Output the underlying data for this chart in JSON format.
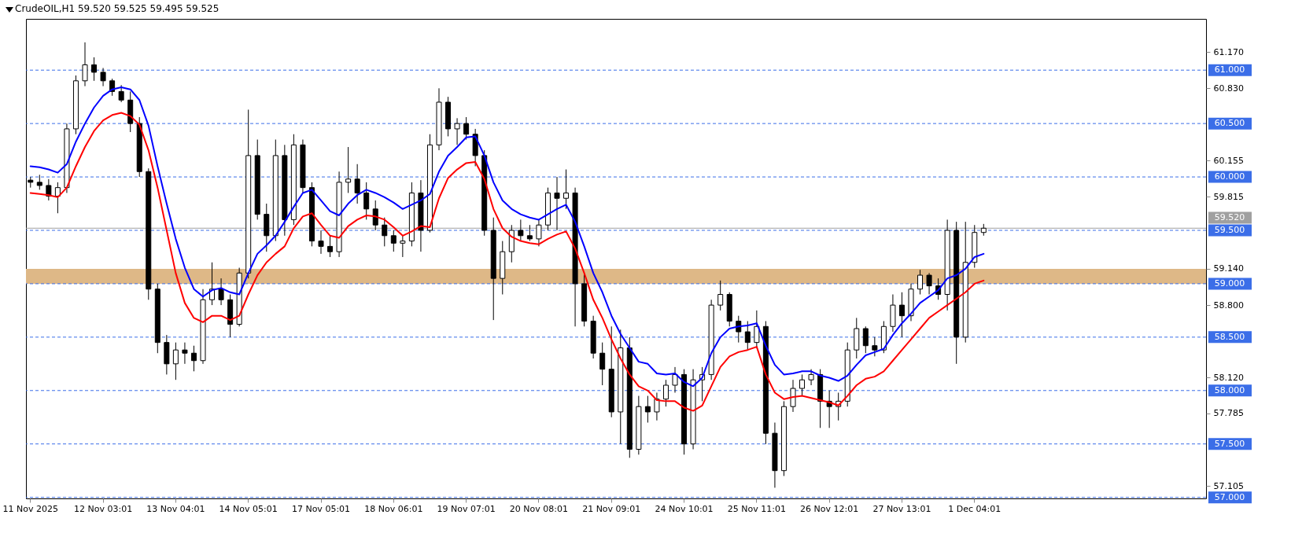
{
  "chart_data": {
    "type": "candlestick",
    "title": "CrudeOIL,H1  59.520 59.525 59.495 59.525",
    "categories": [
      "11 Nov 2025",
      null,
      null,
      null,
      null,
      null,
      null,
      null,
      "12 Nov 03:01",
      null,
      null,
      null,
      null,
      null,
      null,
      null,
      "13 Nov 04:01",
      null,
      null,
      null,
      null,
      null,
      null,
      null,
      "14 Nov 05:01",
      null,
      null,
      null,
      null,
      null,
      null,
      null,
      "17 Nov 05:01",
      null,
      null,
      null,
      null,
      null,
      null,
      null,
      "18 Nov 06:01",
      null,
      null,
      null,
      null,
      null,
      null,
      null,
      "19 Nov 07:01",
      null,
      null,
      null,
      null,
      null,
      null,
      null,
      "20 Nov 08:01",
      null,
      null,
      null,
      null,
      null,
      null,
      null,
      "21 Nov 09:01",
      null,
      null,
      null,
      null,
      null,
      null,
      null,
      "24 Nov 10:01",
      null,
      null,
      null,
      null,
      null,
      null,
      null,
      "25 Nov 11:01",
      null,
      null,
      null,
      null,
      null,
      null,
      null,
      "26 Nov 12:01",
      null,
      null,
      null,
      null,
      null,
      null,
      null,
      "27 Nov 13:01",
      null,
      null,
      null,
      null,
      null,
      null,
      null,
      "1 Dec 04:01",
      null,
      null,
      null,
      null,
      null,
      null,
      null,
      null,
      null,
      null,
      null,
      null,
      null,
      null,
      null,
      null,
      null,
      null,
      null,
      null,
      null,
      null,
      null,
      null,
      null
    ],
    "ohlc": [
      [
        59.97,
        60.0,
        59.9,
        59.95
      ],
      [
        59.95,
        60.02,
        59.88,
        59.92
      ],
      [
        59.92,
        59.98,
        59.78,
        59.82
      ],
      [
        59.82,
        59.95,
        59.66,
        59.9
      ],
      [
        59.9,
        60.5,
        59.85,
        60.45
      ],
      [
        60.45,
        60.95,
        60.4,
        60.9
      ],
      [
        60.9,
        61.26,
        60.85,
        61.05
      ],
      [
        61.05,
        61.12,
        60.9,
        60.98
      ],
      [
        60.98,
        61.02,
        60.85,
        60.9
      ],
      [
        60.9,
        60.92,
        60.76,
        60.8
      ],
      [
        60.8,
        60.86,
        60.7,
        60.72
      ],
      [
        60.72,
        60.8,
        60.42,
        60.5
      ],
      [
        60.5,
        60.56,
        60.0,
        60.05
      ],
      [
        60.05,
        60.08,
        58.85,
        58.95
      ],
      [
        58.95,
        59.0,
        58.35,
        58.45
      ],
      [
        58.45,
        58.52,
        58.15,
        58.25
      ],
      [
        58.25,
        58.45,
        58.1,
        58.38
      ],
      [
        58.38,
        58.45,
        58.25,
        58.35
      ],
      [
        58.35,
        58.42,
        58.18,
        58.28
      ],
      [
        58.28,
        58.95,
        58.25,
        58.85
      ],
      [
        58.85,
        59.2,
        58.8,
        58.95
      ],
      [
        58.95,
        59.05,
        58.8,
        58.85
      ],
      [
        58.85,
        58.9,
        58.5,
        58.62
      ],
      [
        58.62,
        59.15,
        58.6,
        59.1
      ],
      [
        59.1,
        60.63,
        59.05,
        60.2
      ],
      [
        60.2,
        60.35,
        59.6,
        59.65
      ],
      [
        59.65,
        59.75,
        59.3,
        59.45
      ],
      [
        59.45,
        60.35,
        59.4,
        60.2
      ],
      [
        60.2,
        60.3,
        59.45,
        59.6
      ],
      [
        59.6,
        60.4,
        59.55,
        60.3
      ],
      [
        60.3,
        60.35,
        59.85,
        59.9
      ],
      [
        59.9,
        59.95,
        59.35,
        59.4
      ],
      [
        59.4,
        59.5,
        59.28,
        59.35
      ],
      [
        59.35,
        59.45,
        59.25,
        59.3
      ],
      [
        59.3,
        60.05,
        59.25,
        59.95
      ],
      [
        59.95,
        60.28,
        59.85,
        59.98
      ],
      [
        59.98,
        60.12,
        59.75,
        59.85
      ],
      [
        59.85,
        59.95,
        59.6,
        59.7
      ],
      [
        59.7,
        59.78,
        59.5,
        59.55
      ],
      [
        59.55,
        59.62,
        59.35,
        59.45
      ],
      [
        59.45,
        59.5,
        59.3,
        59.38
      ],
      [
        59.38,
        59.45,
        59.25,
        59.4
      ],
      [
        59.4,
        59.95,
        59.35,
        59.85
      ],
      [
        59.85,
        59.97,
        59.3,
        59.5
      ],
      [
        59.5,
        60.4,
        59.48,
        60.3
      ],
      [
        60.3,
        60.83,
        60.25,
        60.7
      ],
      [
        60.7,
        60.75,
        60.38,
        60.45
      ],
      [
        60.45,
        60.55,
        60.3,
        60.5
      ],
      [
        60.5,
        60.56,
        60.35,
        60.4
      ],
      [
        60.4,
        60.45,
        60.1,
        60.2
      ],
      [
        60.2,
        60.25,
        59.45,
        59.5
      ],
      [
        59.5,
        59.62,
        58.66,
        59.05
      ],
      [
        59.05,
        59.4,
        58.9,
        59.3
      ],
      [
        59.3,
        59.55,
        59.2,
        59.5
      ],
      [
        59.5,
        59.6,
        59.4,
        59.45
      ],
      [
        59.45,
        59.55,
        59.4,
        59.42
      ],
      [
        59.42,
        59.6,
        59.35,
        59.55
      ],
      [
        59.55,
        59.9,
        59.5,
        59.85
      ],
      [
        59.85,
        60.0,
        59.5,
        59.8
      ],
      [
        59.8,
        60.07,
        59.7,
        59.85
      ],
      [
        59.85,
        59.9,
        58.6,
        59.0
      ],
      [
        59.0,
        59.1,
        58.6,
        58.65
      ],
      [
        58.65,
        58.7,
        58.3,
        58.35
      ],
      [
        58.35,
        58.45,
        58.05,
        58.2
      ],
      [
        58.2,
        58.6,
        57.75,
        57.8
      ],
      [
        57.8,
        58.57,
        57.5,
        58.4
      ],
      [
        58.4,
        58.5,
        57.37,
        57.45
      ],
      [
        57.45,
        57.95,
        57.4,
        57.85
      ],
      [
        57.85,
        57.95,
        57.7,
        57.8
      ],
      [
        57.8,
        57.98,
        57.72,
        57.92
      ],
      [
        57.92,
        58.1,
        57.85,
        58.05
      ],
      [
        58.05,
        58.22,
        57.98,
        58.15
      ],
      [
        58.15,
        58.2,
        57.4,
        57.5
      ],
      [
        57.5,
        58.2,
        57.45,
        58.1
      ],
      [
        58.1,
        58.22,
        57.9,
        58.15
      ],
      [
        58.15,
        58.85,
        58.1,
        58.8
      ],
      [
        58.8,
        59.03,
        58.75,
        58.9
      ],
      [
        58.9,
        58.92,
        58.6,
        58.65
      ],
      [
        58.65,
        58.7,
        58.45,
        58.55
      ],
      [
        58.55,
        58.65,
        58.38,
        58.45
      ],
      [
        58.45,
        58.75,
        58.4,
        58.6
      ],
      [
        58.6,
        58.65,
        57.5,
        57.6
      ],
      [
        57.6,
        57.7,
        57.09,
        57.25
      ],
      [
        57.25,
        57.9,
        57.2,
        57.85
      ],
      [
        57.85,
        58.1,
        57.8,
        58.02
      ],
      [
        58.02,
        58.15,
        57.95,
        58.1
      ],
      [
        58.1,
        58.2,
        58.05,
        58.15
      ],
      [
        58.15,
        58.2,
        57.65,
        57.9
      ],
      [
        57.9,
        58.0,
        57.65,
        57.85
      ],
      [
        57.85,
        57.98,
        57.72,
        57.9
      ],
      [
        57.9,
        58.45,
        57.85,
        58.38
      ],
      [
        58.38,
        58.68,
        58.3,
        58.58
      ],
      [
        58.58,
        58.6,
        58.35,
        58.42
      ],
      [
        58.42,
        58.5,
        58.32,
        58.38
      ],
      [
        58.38,
        58.65,
        58.35,
        58.6
      ],
      [
        58.6,
        58.9,
        58.55,
        58.8
      ],
      [
        58.8,
        58.92,
        58.5,
        58.7
      ],
      [
        58.7,
        59.0,
        58.65,
        58.95
      ],
      [
        58.95,
        59.13,
        58.9,
        59.08
      ],
      [
        59.08,
        59.1,
        58.9,
        58.98
      ],
      [
        58.98,
        59.05,
        58.85,
        58.9
      ],
      [
        58.9,
        59.6,
        58.75,
        59.5
      ],
      [
        59.5,
        59.58,
        58.25,
        58.5
      ],
      [
        58.5,
        59.58,
        58.45,
        59.2
      ],
      [
        59.2,
        59.55,
        59.15,
        59.48
      ],
      [
        59.48,
        59.56,
        59.45,
        59.52
      ],
      null,
      null,
      null,
      null,
      null,
      null,
      null,
      null,
      null,
      null,
      null,
      null,
      null,
      null,
      null,
      null,
      null,
      null,
      null,
      null,
      null,
      null,
      null,
      null
    ],
    "series": [
      {
        "type": "line",
        "color": "#0000ff",
        "values": [
          60.1,
          60.09,
          60.07,
          60.04,
          60.12,
          60.33,
          60.5,
          60.65,
          60.76,
          60.82,
          60.84,
          60.82,
          60.72,
          60.48,
          60.1,
          59.75,
          59.42,
          59.15,
          58.95,
          58.88,
          58.94,
          58.96,
          58.92,
          58.9,
          59.1,
          59.28,
          59.36,
          59.45,
          59.58,
          59.72,
          59.85,
          59.88,
          59.78,
          59.68,
          59.64,
          59.75,
          59.83,
          59.88,
          59.85,
          59.81,
          59.76,
          59.7,
          59.74,
          59.78,
          59.84,
          60.05,
          60.2,
          60.28,
          60.37,
          60.38,
          60.2,
          59.95,
          59.78,
          59.7,
          59.65,
          59.62,
          59.6,
          59.65,
          59.7,
          59.74,
          59.58,
          59.35,
          59.1,
          58.92,
          58.7,
          58.53,
          58.4,
          58.27,
          58.25,
          58.16,
          58.15,
          58.16,
          58.08,
          58.04,
          58.12,
          58.35,
          58.5,
          58.58,
          58.6,
          58.61,
          58.63,
          58.42,
          58.24,
          58.15,
          58.16,
          58.18,
          58.18,
          58.14,
          58.12,
          58.09,
          58.14,
          58.24,
          58.33,
          58.36,
          58.39,
          58.52,
          58.63,
          58.72,
          58.82,
          58.88,
          58.94,
          59.05,
          59.08,
          59.14,
          59.25,
          59.28,
          null,
          null,
          null,
          null,
          null,
          null,
          null,
          null,
          null,
          null,
          null,
          null,
          null,
          null,
          null,
          null,
          null,
          null,
          null,
          null,
          null,
          null,
          null,
          null
        ]
      },
      {
        "type": "line",
        "color": "#ff0000",
        "values": [
          59.85,
          59.84,
          59.83,
          59.81,
          59.9,
          60.1,
          60.28,
          60.43,
          60.53,
          60.58,
          60.6,
          60.57,
          60.49,
          60.25,
          59.9,
          59.5,
          59.1,
          58.82,
          58.68,
          58.64,
          58.7,
          58.7,
          58.66,
          58.7,
          58.9,
          59.08,
          59.2,
          59.28,
          59.35,
          59.52,
          59.63,
          59.66,
          59.55,
          59.45,
          59.43,
          59.54,
          59.6,
          59.64,
          59.63,
          59.6,
          59.53,
          59.45,
          59.49,
          59.54,
          59.53,
          59.8,
          59.99,
          60.07,
          60.13,
          60.14,
          59.98,
          59.7,
          59.52,
          59.44,
          59.4,
          59.38,
          59.37,
          59.42,
          59.46,
          59.49,
          59.33,
          59.1,
          58.85,
          58.68,
          58.48,
          58.3,
          58.15,
          58.04,
          58.0,
          57.91,
          57.9,
          57.9,
          57.84,
          57.81,
          57.86,
          58.04,
          58.22,
          58.32,
          58.36,
          58.38,
          58.41,
          58.15,
          57.98,
          57.92,
          57.94,
          57.95,
          57.93,
          57.91,
          57.89,
          57.86,
          57.95,
          58.05,
          58.11,
          58.13,
          58.18,
          58.28,
          58.38,
          58.48,
          58.58,
          58.68,
          58.74,
          58.8,
          58.86,
          58.92,
          59.0,
          59.03,
          null,
          null,
          null,
          null,
          null,
          null,
          null,
          null,
          null,
          null,
          null,
          null,
          null,
          null,
          null,
          null,
          null,
          null,
          null,
          null,
          null,
          null,
          null,
          null
        ]
      }
    ],
    "ylim": [
      56.99,
      61.48
    ],
    "yticks": [
      {
        "value": 61.17,
        "label": "61.170"
      },
      {
        "value": 60.83,
        "label": "60.830"
      },
      {
        "value": 60.155,
        "label": "60.155"
      },
      {
        "value": 59.815,
        "label": "59.815"
      },
      {
        "value": 59.14,
        "label": "59.140"
      },
      {
        "value": 58.8,
        "label": "58.800"
      },
      {
        "value": 58.12,
        "label": "58.120"
      },
      {
        "value": 57.785,
        "label": "57.785"
      },
      {
        "value": 57.105,
        "label": "57.105"
      }
    ],
    "ref_lines": [
      {
        "axis": "y",
        "value": 61.0,
        "label": "61.000",
        "color": "#3b6ee8",
        "line_style": "dashed"
      },
      {
        "axis": "y",
        "value": 60.5,
        "label": "60.500",
        "color": "#3b6ee8",
        "line_style": "dashed"
      },
      {
        "axis": "y",
        "value": 60.0,
        "label": "60.000",
        "color": "#3b6ee8",
        "line_style": "dashed"
      },
      {
        "axis": "y",
        "value": 59.5,
        "label": "59.500",
        "color": "#3b6ee8",
        "line_style": "dashed"
      },
      {
        "axis": "y",
        "value": 59.0,
        "label": "59.000",
        "color": "#3b6ee8",
        "line_style": "dashed"
      },
      {
        "axis": "y",
        "value": 58.5,
        "label": "58.500",
        "color": "#3b6ee8",
        "line_style": "dashed"
      },
      {
        "axis": "y",
        "value": 58.0,
        "label": "58.000",
        "color": "#3b6ee8",
        "line_style": "dashed"
      },
      {
        "axis": "y",
        "value": 57.5,
        "label": "57.500",
        "color": "#3b6ee8",
        "line_style": "dashed"
      },
      {
        "axis": "y",
        "value": 57.0,
        "label": "57.000",
        "color": "#3b6ee8",
        "line_style": "dashed"
      },
      {
        "axis": "y",
        "value": 59.52,
        "label": "59.520",
        "color": "#a0a0a0",
        "line_style": "solid"
      }
    ],
    "bands": [
      {
        "axis": "y",
        "from": 59.0,
        "to": 59.14,
        "color": "#deb887"
      }
    ]
  }
}
